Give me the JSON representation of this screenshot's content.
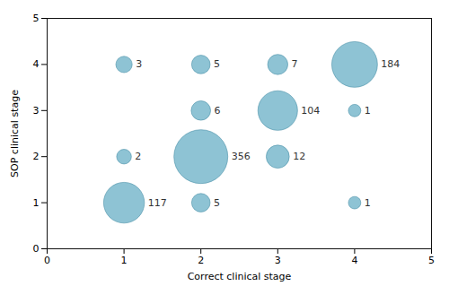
{
  "chart_data": {
    "type": "bubble",
    "x": [
      1,
      1,
      1,
      2,
      2,
      2,
      2,
      3,
      3,
      3,
      4,
      4,
      4
    ],
    "values": [
      1,
      2,
      4,
      1,
      2,
      3,
      4,
      2,
      3,
      4,
      1,
      3,
      4
    ],
    "sizes": [
      117,
      2,
      3,
      5,
      356,
      6,
      5,
      12,
      104,
      7,
      1,
      1,
      184
    ],
    "data_labels": true,
    "color": "#7ab8cc",
    "xlabel": "Correct clinical stage",
    "ylabel": "SOP clinical stage",
    "xlim": [
      0,
      5
    ],
    "ylim": [
      0,
      5
    ],
    "xticks": [
      0,
      1,
      2,
      3,
      4,
      5
    ],
    "yticks": [
      0,
      1,
      2,
      3,
      4,
      5
    ],
    "grid": false
  }
}
